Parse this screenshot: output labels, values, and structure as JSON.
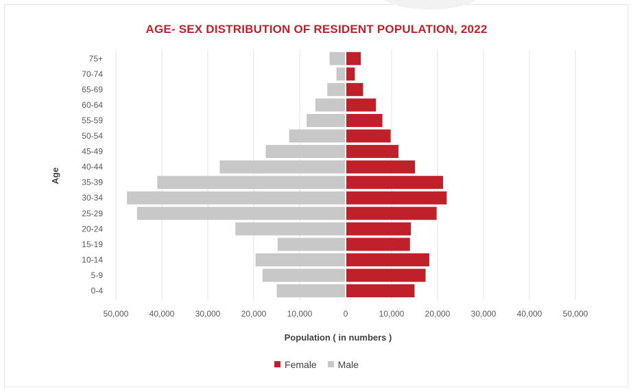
{
  "chart_data": {
    "type": "bar",
    "orientation": "horizontal-pyramid",
    "title": "AGE- SEX DISTRIBUTION OF RESIDENT POPULATION, 2022",
    "xlabel": "Population ( in numbers )",
    "ylabel": "Age",
    "categories": [
      "75+",
      "70-74",
      "65-69",
      "60-64",
      "55-59",
      "50-54",
      "45-49",
      "40-44",
      "35-39",
      "30-34",
      "25-29",
      "20-24",
      "15-19",
      "10-14",
      "5-9",
      "0-4"
    ],
    "series": [
      {
        "name": "Female",
        "color": "#c0202a",
        "values": [
          3300,
          2000,
          3800,
          6600,
          8000,
          9800,
          11500,
          15100,
          21200,
          22000,
          19800,
          14200,
          14000,
          18200,
          17400,
          15000
        ]
      },
      {
        "name": "Male",
        "color": "#c8c8c8",
        "values": [
          3500,
          2000,
          4000,
          6600,
          8500,
          12300,
          17400,
          27400,
          41000,
          47600,
          45400,
          24000,
          14800,
          19600,
          18100,
          15000
        ]
      }
    ],
    "xlim": [
      -50000,
      50000
    ],
    "xticks": [
      "50,000",
      "40,000",
      "30,000",
      "20,000",
      "10,000",
      "0",
      "10,000",
      "20,000",
      "30,000",
      "40,000",
      "50,000"
    ],
    "grid": true,
    "legend_position": "bottom"
  }
}
